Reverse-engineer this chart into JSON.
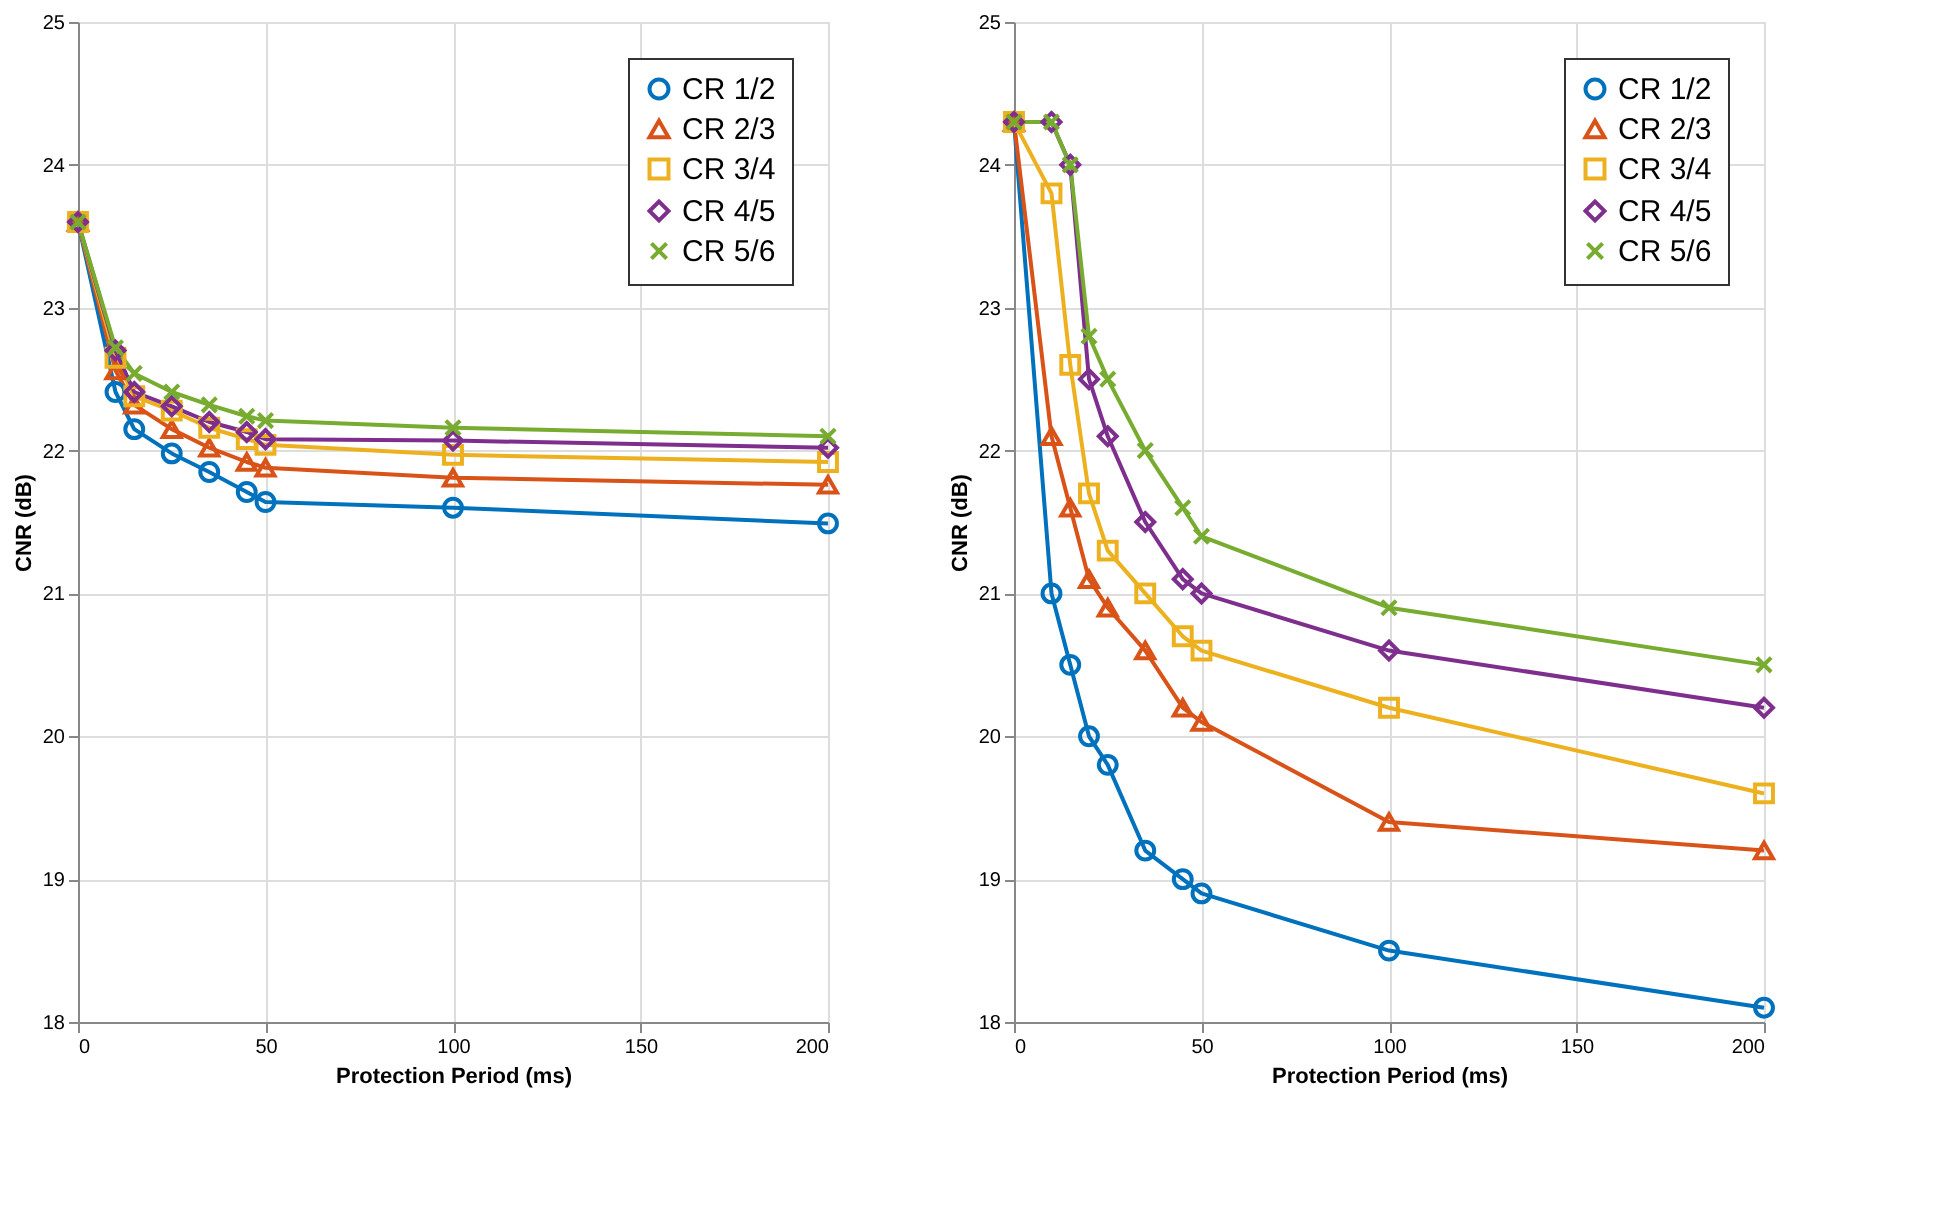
{
  "chart_data": [
    {
      "type": "line",
      "xlabel": "Protection Period (ms)",
      "ylabel": "CNR (dB)",
      "xlim": [
        0,
        200
      ],
      "xticks": [
        0,
        50,
        100,
        150,
        200
      ],
      "ylim": [
        18,
        25
      ],
      "yticks": [
        18,
        19,
        20,
        21,
        22,
        23,
        24,
        25
      ],
      "grid": true,
      "legend": "top right",
      "line_style": "solid",
      "series": [
        {
          "name": "CR 1/2",
          "color": "#0072bd",
          "marker": "circle",
          "x": [
            0,
            10,
            15,
            25,
            35,
            45,
            50,
            100,
            200
          ],
          "values": [
            23.6,
            22.41,
            22.15,
            21.98,
            21.85,
            21.71,
            21.64,
            21.6,
            21.49
          ]
        },
        {
          "name": "CR 2/3",
          "color": "#d95319",
          "marker": "triangle",
          "x": [
            0,
            10,
            15,
            25,
            35,
            45,
            50,
            100,
            200
          ],
          "values": [
            23.6,
            22.56,
            22.32,
            22.15,
            22.02,
            21.92,
            21.88,
            21.81,
            21.76
          ]
        },
        {
          "name": "CR 3/4",
          "color": "#edb120",
          "marker": "square",
          "x": [
            0,
            10,
            15,
            25,
            35,
            45,
            50,
            100,
            200
          ],
          "values": [
            23.6,
            22.65,
            22.38,
            22.28,
            22.16,
            22.08,
            22.04,
            21.97,
            21.92
          ]
        },
        {
          "name": "CR 4/5",
          "color": "#7e2f8e",
          "marker": "diamond",
          "x": [
            0,
            10,
            15,
            25,
            35,
            45,
            50,
            100,
            200
          ],
          "values": [
            23.6,
            22.7,
            22.41,
            22.31,
            22.2,
            22.13,
            22.08,
            22.07,
            22.02
          ]
        },
        {
          "name": "CR 5/6",
          "color": "#77ac30",
          "marker": "cross",
          "x": [
            0,
            10,
            15,
            25,
            35,
            45,
            50,
            100,
            200
          ],
          "values": [
            23.6,
            22.72,
            22.54,
            22.41,
            22.32,
            22.24,
            22.21,
            22.16,
            22.1
          ]
        }
      ]
    },
    {
      "type": "line",
      "xlabel": "Protection Period (ms)",
      "ylabel": "CNR (dB)",
      "xlim": [
        0,
        200
      ],
      "xticks": [
        0,
        50,
        100,
        150,
        200
      ],
      "ylim": [
        18,
        25
      ],
      "yticks": [
        18,
        19,
        20,
        21,
        22,
        23,
        24,
        25
      ],
      "grid": true,
      "legend": "top right",
      "line_style": "solid",
      "series": [
        {
          "name": "CR 1/2",
          "color": "#0072bd",
          "marker": "circle",
          "x": [
            0,
            10,
            15,
            20,
            25,
            35,
            45,
            50,
            100,
            200
          ],
          "values": [
            24.3,
            21.0,
            20.5,
            20.0,
            19.8,
            19.2,
            19.0,
            18.9,
            18.5,
            18.1
          ]
        },
        {
          "name": "CR 2/3",
          "color": "#d95319",
          "marker": "triangle",
          "x": [
            0,
            10,
            15,
            20,
            25,
            35,
            45,
            50,
            100,
            200
          ],
          "values": [
            24.3,
            22.1,
            21.6,
            21.1,
            20.9,
            20.6,
            20.2,
            20.1,
            19.4,
            19.2
          ]
        },
        {
          "name": "CR 3/4",
          "color": "#edb120",
          "marker": "square",
          "x": [
            0,
            10,
            15,
            20,
            25,
            35,
            45,
            50,
            100,
            200
          ],
          "values": [
            24.3,
            23.8,
            22.6,
            21.7,
            21.3,
            21.0,
            20.7,
            20.6,
            20.2,
            19.6
          ]
        },
        {
          "name": "CR 4/5",
          "color": "#7e2f8e",
          "marker": "diamond",
          "x": [
            0,
            10,
            15,
            20,
            25,
            35,
            45,
            50,
            100,
            200
          ],
          "values": [
            24.3,
            24.3,
            24.0,
            22.5,
            22.1,
            21.5,
            21.1,
            21.0,
            20.6,
            20.2
          ]
        },
        {
          "name": "CR 5/6",
          "color": "#77ac30",
          "marker": "cross",
          "x": [
            0,
            10,
            15,
            20,
            25,
            35,
            45,
            50,
            100,
            200
          ],
          "values": [
            24.3,
            24.3,
            24.0,
            22.8,
            22.5,
            22.0,
            21.6,
            21.4,
            20.9,
            20.5
          ]
        }
      ]
    }
  ]
}
